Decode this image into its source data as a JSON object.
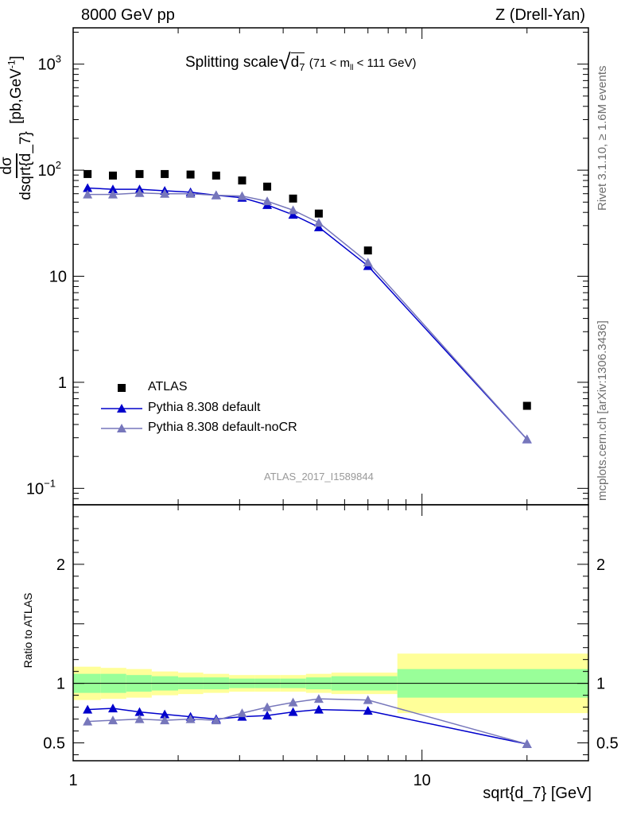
{
  "header": {
    "left": "8000 GeV pp",
    "right": "Z (Drell-Yan)"
  },
  "side_labels": {
    "rivet": "Rivet 3.1.10, ≥ 1.6M events",
    "mcplots": "mcplots.cern.ch [arXiv:1306.3436]"
  },
  "main_title": {
    "prefix": "Splitting scale",
    "symbol": "d",
    "sub": "7",
    "cut": "(71 < m",
    "cut_sub": "ll",
    "cut_end": "< 111 GeV)"
  },
  "ylabel": {
    "num": "dσ",
    "den": "dsqrt{d_7}",
    "unit": "[pb,GeV",
    "unit_sup": "-1",
    "unit_end": "]"
  },
  "analysis_id": "ATLAS_2017_I1589844",
  "xlabel": "sqrt{d_7} [GeV]",
  "ratio_ylabel": "Ratio to ATLAS",
  "legend": [
    {
      "name": "ATLAS"
    },
    {
      "name": "Pythia 8.308 default"
    },
    {
      "name": "Pythia 8.308 default-noCR"
    }
  ],
  "colors": {
    "atlas": "#000000",
    "pythia_default": "#0000cc",
    "pythia_nocr": "#7777bb",
    "band_inner": "#99ff99",
    "band_outer": "#ffff99"
  },
  "chart_data": [
    {
      "type": "scatter",
      "panel": "main",
      "x_scale": "log",
      "y_scale": "log",
      "xlim": [
        1,
        30
      ],
      "ylim": [
        0.07,
        2200
      ],
      "y_ticks": [
        {
          "value": 0.1,
          "label": "10",
          "sup": "−1"
        },
        {
          "value": 1,
          "label": "1",
          "sup": ""
        },
        {
          "value": 10,
          "label": "10",
          "sup": ""
        },
        {
          "value": 100,
          "label": "10",
          "sup": "2"
        },
        {
          "value": 1000,
          "label": "10",
          "sup": "3"
        }
      ],
      "x_ticks": [
        {
          "value": 1,
          "label": "1"
        },
        {
          "value": 10,
          "label": "10"
        }
      ],
      "x": [
        1.1,
        1.3,
        1.55,
        1.83,
        2.17,
        2.57,
        3.05,
        3.6,
        4.27,
        5.06,
        7.0,
        20.0
      ],
      "series": [
        {
          "name": "ATLAS",
          "marker": "square",
          "values": [
            92,
            89,
            92,
            92,
            91,
            89,
            80,
            70,
            54,
            39,
            17.5,
            0.6
          ]
        },
        {
          "name": "Pythia 8.308 default",
          "marker": "triangle",
          "values": [
            68,
            66,
            66,
            64,
            62,
            58,
            55,
            47,
            38,
            29,
            12.5,
            0.29
          ]
        },
        {
          "name": "Pythia 8.308 default-noCR",
          "marker": "triangle",
          "values": [
            59,
            59,
            61,
            60,
            60,
            58,
            57,
            51,
            42,
            32,
            13.5,
            0.29
          ]
        }
      ]
    },
    {
      "type": "line",
      "panel": "ratio",
      "x_scale": "log",
      "xlim": [
        1,
        30
      ],
      "ylim": [
        0.35,
        2.5
      ],
      "y_ticks": [
        {
          "value": 0.5,
          "label": "0.5"
        },
        {
          "value": 1,
          "label": "1"
        },
        {
          "value": 2,
          "label": "2"
        }
      ],
      "x": [
        1.1,
        1.3,
        1.55,
        1.83,
        2.17,
        2.57,
        3.05,
        3.6,
        4.27,
        5.06,
        7.0,
        20.0
      ],
      "bands": {
        "edges": [
          1.0,
          1.2,
          1.42,
          1.68,
          2.0,
          2.36,
          2.8,
          3.32,
          3.93,
          4.65,
          5.5,
          8.5,
          30
        ],
        "inner_low": [
          0.92,
          0.92,
          0.93,
          0.94,
          0.95,
          0.95,
          0.96,
          0.96,
          0.96,
          0.95,
          0.94,
          0.88
        ],
        "inner_high": [
          1.08,
          1.08,
          1.07,
          1.06,
          1.05,
          1.05,
          1.04,
          1.04,
          1.04,
          1.05,
          1.06,
          1.12
        ],
        "outer_low": [
          0.86,
          0.87,
          0.88,
          0.9,
          0.91,
          0.92,
          0.93,
          0.93,
          0.93,
          0.92,
          0.91,
          0.75
        ],
        "outer_high": [
          1.14,
          1.13,
          1.12,
          1.1,
          1.09,
          1.08,
          1.07,
          1.07,
          1.07,
          1.08,
          1.09,
          1.25
        ]
      },
      "series": [
        {
          "name": "Pythia 8.308 default",
          "values": [
            0.78,
            0.79,
            0.76,
            0.74,
            0.72,
            0.7,
            0.72,
            0.73,
            0.76,
            0.78,
            0.77,
            0.49
          ]
        },
        {
          "name": "Pythia 8.308 default-noCR",
          "values": [
            0.68,
            0.69,
            0.7,
            0.69,
            0.7,
            0.69,
            0.75,
            0.8,
            0.84,
            0.87,
            0.86,
            0.49
          ]
        }
      ]
    }
  ]
}
